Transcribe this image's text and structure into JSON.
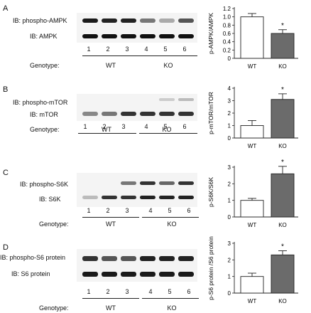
{
  "panels": [
    {
      "letter": "A",
      "blot_labels": [
        "IB: phospho-AMPK",
        "IB: AMPK"
      ],
      "lanes": [
        "1",
        "2",
        "3",
        "4",
        "5",
        "6"
      ],
      "genotype_label": "Genotype:",
      "groups": [
        "WT",
        "KO"
      ]
    },
    {
      "letter": "B",
      "blot_labels": [
        "IB: phospho-mTOR",
        "IB: mTOR"
      ],
      "lanes": [
        "1",
        "2",
        "3",
        "4",
        "5",
        "6"
      ],
      "genotype_label": "Genotype:",
      "groups": [
        "WT",
        "KO"
      ]
    },
    {
      "letter": "C",
      "blot_labels": [
        "IB: phospho-S6K",
        "IB: S6K"
      ],
      "lanes": [
        "1",
        "2",
        "3",
        "4",
        "5",
        "6"
      ],
      "genotype_label": "Genotype:",
      "groups": [
        "WT",
        "KO"
      ]
    },
    {
      "letter": "D",
      "blot_labels": [
        "IB: phospho-S6 protein",
        "IB: S6 protein"
      ],
      "lanes": [
        "1",
        "2",
        "3",
        "4",
        "5",
        "6"
      ],
      "genotype_label": "Genotype:",
      "groups": [
        "WT",
        "KO"
      ]
    }
  ],
  "chart_data": [
    {
      "type": "bar",
      "categories": [
        "WT",
        "KO"
      ],
      "values": [
        1.0,
        0.6
      ],
      "errors": [
        0.08,
        0.09
      ],
      "significance": [
        "",
        "*"
      ],
      "ylabel": "p-AMPK/AMPK",
      "ylim": [
        0,
        1.2
      ],
      "yticks": [
        "0",
        "0.2",
        "0.4",
        "0.6",
        "0.8",
        "1.0",
        "1.2"
      ],
      "bar_colors": [
        "#ffffff",
        "#6b6b6b"
      ]
    },
    {
      "type": "bar",
      "categories": [
        "WT",
        "KO"
      ],
      "values": [
        1.0,
        3.1
      ],
      "errors": [
        0.4,
        0.45
      ],
      "significance": [
        "",
        "*"
      ],
      "ylabel": "p-mTOR/mTOR",
      "ylim": [
        0,
        4
      ],
      "yticks": [
        "0",
        "1",
        "2",
        "3",
        "4"
      ],
      "bar_colors": [
        "#ffffff",
        "#6b6b6b"
      ]
    },
    {
      "type": "bar",
      "categories": [
        "WT",
        "KO"
      ],
      "values": [
        1.0,
        2.6
      ],
      "errors": [
        0.12,
        0.45
      ],
      "significance": [
        "",
        "*"
      ],
      "ylabel": "p-S6K/S6K",
      "ylim": [
        0,
        3
      ],
      "yticks": [
        "0",
        "1",
        "2",
        "3"
      ],
      "bar_colors": [
        "#ffffff",
        "#6b6b6b"
      ]
    },
    {
      "type": "bar",
      "categories": [
        "WT",
        "KO"
      ],
      "values": [
        1.0,
        2.3
      ],
      "errors": [
        0.2,
        0.25
      ],
      "significance": [
        "",
        "*"
      ],
      "ylabel": "p-S6 protein /S6 protein",
      "ylim": [
        0,
        3
      ],
      "yticks": [
        "0",
        "1",
        "2",
        "3"
      ],
      "bar_colors": [
        "#ffffff",
        "#6b6b6b"
      ]
    }
  ]
}
